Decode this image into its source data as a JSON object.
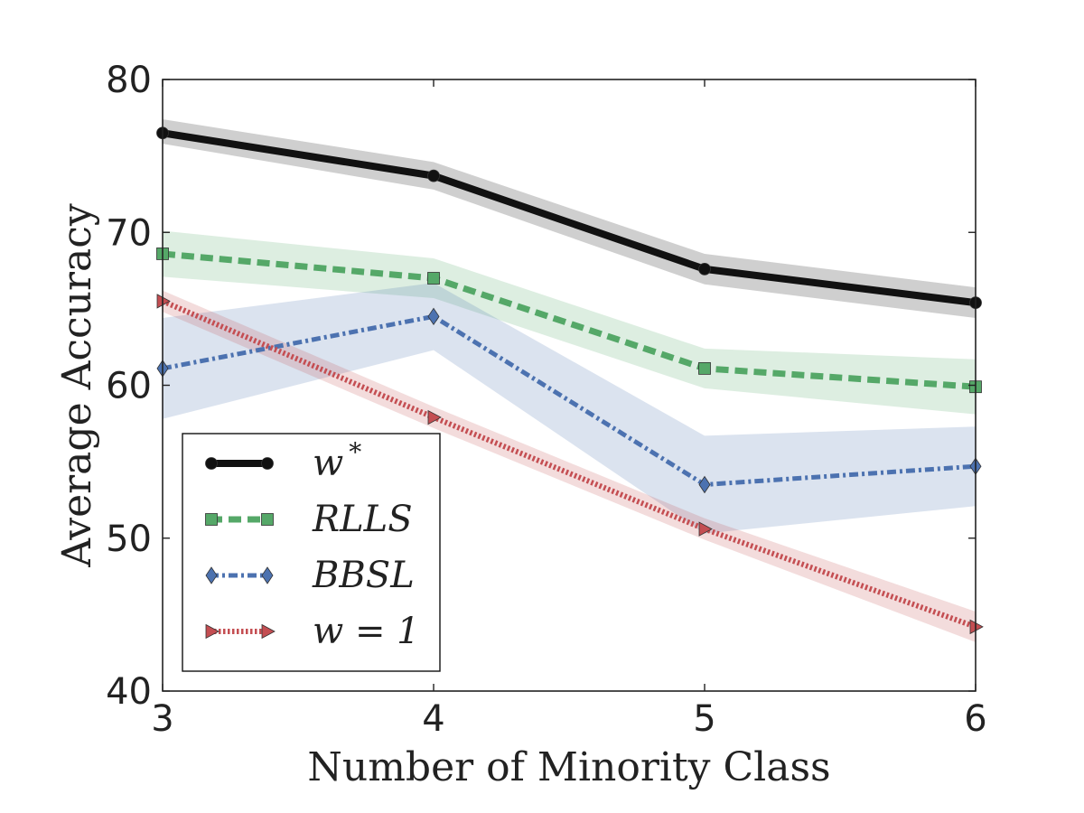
{
  "chart_data": {
    "type": "line",
    "xlabel": "Number of Minority Class",
    "ylabel": "Average Accuracy",
    "x": [
      3,
      4,
      5,
      6
    ],
    "xlim": [
      3,
      6
    ],
    "ylim": [
      40,
      80
    ],
    "xticks": [
      "3",
      "4",
      "5",
      "6"
    ],
    "yticks": [
      "40",
      "50",
      "60",
      "70",
      "80"
    ],
    "grid": false,
    "legend_position": "lower-left",
    "series": [
      {
        "name": "w*",
        "label_main": "w",
        "label_sup": "*",
        "values": [
          76.5,
          73.7,
          67.6,
          65.4
        ],
        "lower": [
          75.8,
          72.8,
          66.6,
          64.4
        ],
        "upper": [
          77.4,
          74.6,
          68.6,
          66.4
        ],
        "color": "#111111",
        "band_color": "#bbbbbb",
        "marker": "circle",
        "style": "solid"
      },
      {
        "name": "RLLS",
        "label_main": "RLLS",
        "label_sup": "",
        "values": [
          68.6,
          67.0,
          61.1,
          59.9
        ],
        "lower": [
          67.1,
          65.7,
          59.8,
          58.1
        ],
        "upper": [
          70.1,
          68.3,
          62.4,
          61.7
        ],
        "color": "#55a868",
        "band_color": "#55a868",
        "marker": "square",
        "style": "dashed"
      },
      {
        "name": "BBSL",
        "label_main": "BBSL",
        "label_sup": "",
        "values": [
          61.1,
          64.5,
          53.5,
          54.7
        ],
        "lower": [
          57.8,
          62.3,
          50.3,
          52.1
        ],
        "upper": [
          64.4,
          66.7,
          56.7,
          57.3
        ],
        "color": "#4c72b0",
        "band_color": "#4c72b0",
        "marker": "diamond",
        "style": "dashdot"
      },
      {
        "name": "w = 1",
        "label_main": "w = 1",
        "label_sup": "",
        "values": [
          65.5,
          57.9,
          50.6,
          44.2
        ],
        "lower": [
          64.8,
          57.2,
          49.9,
          43.2
        ],
        "upper": [
          66.2,
          58.6,
          51.3,
          45.2
        ],
        "color": "#c44e52",
        "band_color": "#c44e52",
        "marker": "triangle-right",
        "style": "dotted"
      }
    ]
  }
}
